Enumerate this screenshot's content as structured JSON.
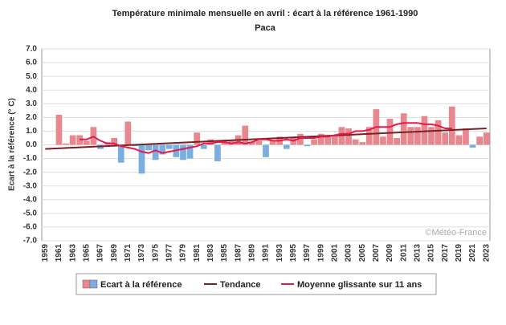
{
  "chart_data": {
    "type": "bar",
    "title": "Température minimale mensuelle en avril : écart à la référence 1961-1990",
    "subtitle": "Paca",
    "y_label": "Ecart à la référence (° C)",
    "watermark": "©Météo-France",
    "categories": [
      "1959",
      null,
      "1961",
      null,
      "1963",
      null,
      "1965",
      null,
      "1967",
      null,
      "1969",
      null,
      "1971",
      null,
      "1973",
      null,
      "1975",
      null,
      "1977",
      null,
      "1979",
      null,
      "1981",
      null,
      "1983",
      null,
      "1985",
      null,
      "1987",
      null,
      "1989",
      null,
      "1991",
      null,
      "1993",
      null,
      "1995",
      null,
      "1997",
      null,
      "1999",
      null,
      "2001",
      null,
      "2003",
      null,
      "2005",
      null,
      "2007",
      null,
      "2009",
      null,
      "2011",
      null,
      "2013",
      null,
      "2015",
      null,
      "2017",
      null,
      "2019",
      null,
      "2021",
      null,
      "2023"
    ],
    "series": [
      {
        "name": "Ecart à la référence",
        "positive_color": "#e8878e",
        "negative_color": "#78aee0",
        "values": [
          0.0,
          0.0,
          2.2,
          0.1,
          0.7,
          0.7,
          0.3,
          1.3,
          -0.3,
          0.2,
          0.5,
          -1.3,
          1.7,
          -0.1,
          -2.1,
          -0.4,
          -1.1,
          -0.7,
          -0.3,
          -0.9,
          -1.1,
          -1.0,
          0.9,
          -0.3,
          0.4,
          -1.2,
          0.3,
          0.3,
          0.7,
          1.4,
          0.2,
          0.3,
          -0.9,
          0.3,
          0.6,
          -0.3,
          0.6,
          0.8,
          -0.1,
          0.4,
          0.8,
          0.7,
          0.7,
          1.3,
          1.2,
          0.4,
          0.2,
          1.3,
          2.6,
          0.6,
          1.9,
          0.5,
          2.3,
          1.3,
          1.3,
          2.1,
          1.3,
          1.8,
          0.9,
          2.8,
          0.7,
          1.2,
          -0.2,
          0.6,
          0.9
        ]
      },
      {
        "name": "Moyenne glissante sur 11 ans",
        "color": "#e8194a",
        "values": [
          null,
          null,
          null,
          null,
          null,
          0.4,
          0.4,
          0.6,
          0.3,
          0.1,
          0.1,
          -0.1,
          -0.2,
          -0.3,
          -0.5,
          -0.6,
          -0.4,
          -0.6,
          -0.5,
          -0.4,
          -0.3,
          -0.2,
          -0.1,
          0.1,
          0.1,
          0.2,
          0.2,
          0.1,
          0.2,
          0.1,
          0.2,
          0.4,
          0.4,
          0.3,
          0.3,
          0.4,
          0.3,
          0.5,
          0.5,
          0.5,
          0.6,
          0.6,
          0.7,
          0.8,
          0.8,
          1.0,
          1.0,
          1.1,
          1.3,
          1.3,
          1.3,
          1.5,
          1.6,
          1.6,
          1.6,
          1.5,
          1.5,
          1.4,
          1.2,
          1.2,
          null,
          null,
          null,
          null,
          null
        ]
      }
    ],
    "trend": {
      "name": "Tendance",
      "color": "#7a1f22",
      "start": -0.3,
      "end": 1.2
    },
    "ylim": [
      -7,
      7
    ],
    "yticks": [
      {
        "value": -7,
        "label": "-7.0"
      },
      {
        "value": -6,
        "label": "-6.0"
      },
      {
        "value": -5,
        "label": "-5.0"
      },
      {
        "value": -4,
        "label": "-4.0"
      },
      {
        "value": -3,
        "label": "-3.0"
      },
      {
        "value": -2,
        "label": "-2.0"
      },
      {
        "value": -1,
        "label": "-1.0"
      },
      {
        "value": 0,
        "label": "0.0"
      },
      {
        "value": 1,
        "label": "1.0"
      },
      {
        "value": 2,
        "label": "2.0"
      },
      {
        "value": 3,
        "label": "3.0"
      },
      {
        "value": 4,
        "label": "4.0"
      },
      {
        "value": 5,
        "label": "5.0"
      },
      {
        "value": 6,
        "label": "6.0"
      },
      {
        "value": 7,
        "label": "7.0"
      }
    ],
    "grid": true
  }
}
